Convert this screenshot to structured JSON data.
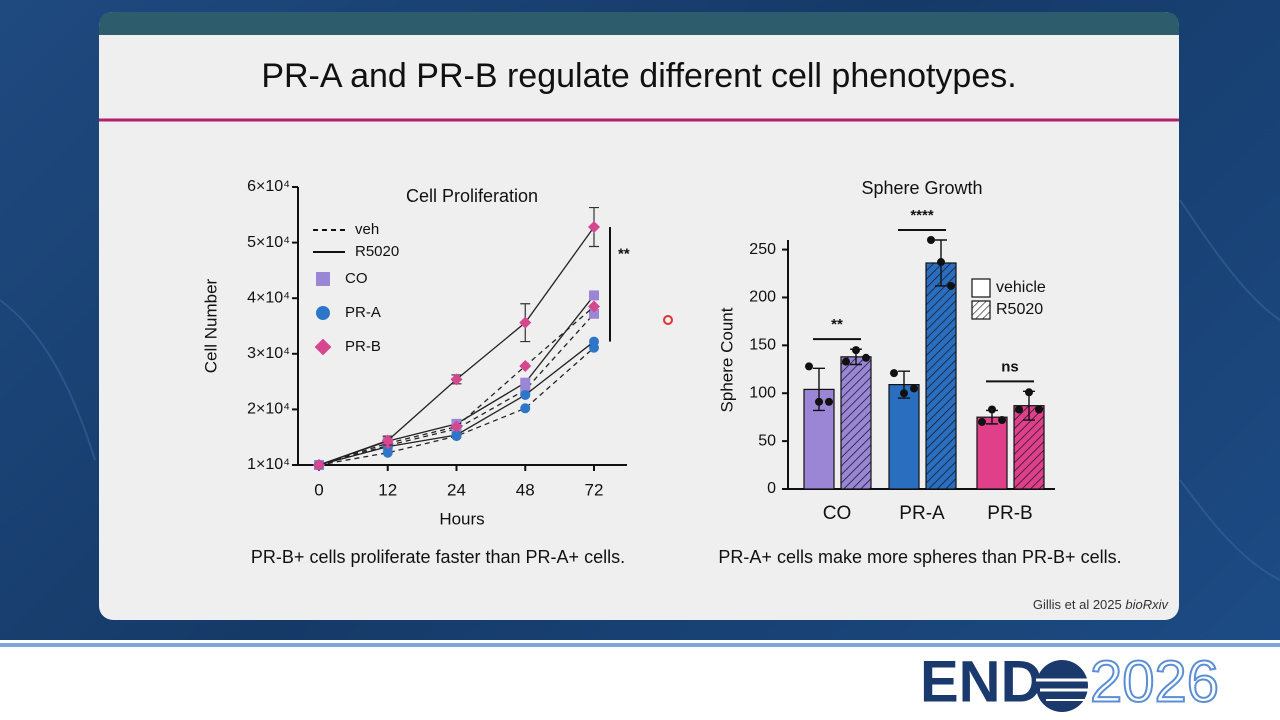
{
  "slide": {
    "title": "PR-A and PR-B regulate different cell phenotypes.",
    "captions": [
      "PR-B+ cells proliferate faster than PR-A+ cells.",
      "PR-A+ cells make more spheres than PR-B+ cells."
    ],
    "citation": "Gillis et al 2025",
    "citation_journal": "bioRxiv",
    "logo": {
      "left": "END",
      "right": "2026"
    }
  },
  "chart_data": [
    {
      "type": "line",
      "title": "Cell Proliferation",
      "xlabel": "Hours",
      "ylabel": "Cell Number",
      "categories": [
        "0",
        "12",
        "24",
        "48",
        "72"
      ],
      "ylim": [
        10000,
        60000
      ],
      "yticks": [
        {
          "value": 10000,
          "label": "1×10⁴"
        },
        {
          "value": 20000,
          "label": "2×10⁴"
        },
        {
          "value": 30000,
          "label": "3×10⁴"
        },
        {
          "value": 40000,
          "label": "4×10⁴"
        },
        {
          "value": 50000,
          "label": "5×10⁴"
        },
        {
          "value": 60000,
          "label": "6×10⁴"
        }
      ],
      "line_color": "#222222",
      "treatments": [
        {
          "name": "veh",
          "dash": "5 4"
        },
        {
          "name": "R5020",
          "dash": "none"
        }
      ],
      "groups": [
        {
          "name": "CO",
          "color": "#9a86d4",
          "marker": "square",
          "series": [
            {
              "values": [
                10000,
                13500,
                16500,
                23500,
                37200
              ]
            },
            {
              "values": [
                10000,
                14300,
                17400,
                24800,
                40500
              ]
            }
          ]
        },
        {
          "name": "PR-A",
          "color": "#2e77c8",
          "marker": "circle",
          "series": [
            {
              "values": [
                10000,
                12200,
                15200,
                20200,
                31100
              ]
            },
            {
              "values": [
                10000,
                13300,
                15400,
                22600,
                32200
              ]
            }
          ]
        },
        {
          "name": "PR-B",
          "color": "#d6478f",
          "marker": "diamond",
          "series": [
            {
              "values": [
                10000,
                13900,
                16900,
                27800,
                38500
              ]
            },
            {
              "values": [
                10000,
                14400,
                25400,
                35600,
                52800
              ],
              "errors": [
                null,
                800,
                800,
                3400,
                3500
              ]
            }
          ]
        }
      ],
      "annotation": "**"
    },
    {
      "type": "bar",
      "title": "Sphere Growth",
      "ylabel": "Sphere Count",
      "categories": [
        "CO",
        "PR-A",
        "PR-B"
      ],
      "colors": [
        "#9a86d4",
        "#2a6fbf",
        "#e0408a"
      ],
      "ylim": [
        0,
        260
      ],
      "yticks": [
        0,
        50,
        100,
        150,
        200,
        250
      ],
      "series": [
        {
          "name": "vehicle",
          "hatch": false,
          "values": [
            104,
            109,
            75
          ],
          "errors": [
            22,
            14,
            7
          ],
          "points": [
            [
              128,
              91,
              91
            ],
            [
              121,
              100,
              105
            ],
            [
              70,
              83,
              72
            ]
          ]
        },
        {
          "name": "R5020",
          "hatch": true,
          "values": [
            138,
            236,
            87
          ],
          "errors": [
            8,
            24,
            15
          ],
          "points": [
            [
              133,
              145,
              137
            ],
            [
              260,
              237,
              212
            ],
            [
              83,
              101,
              83
            ]
          ]
        }
      ],
      "significance": [
        "**",
        "****",
        "ns"
      ],
      "legend": "right"
    }
  ]
}
